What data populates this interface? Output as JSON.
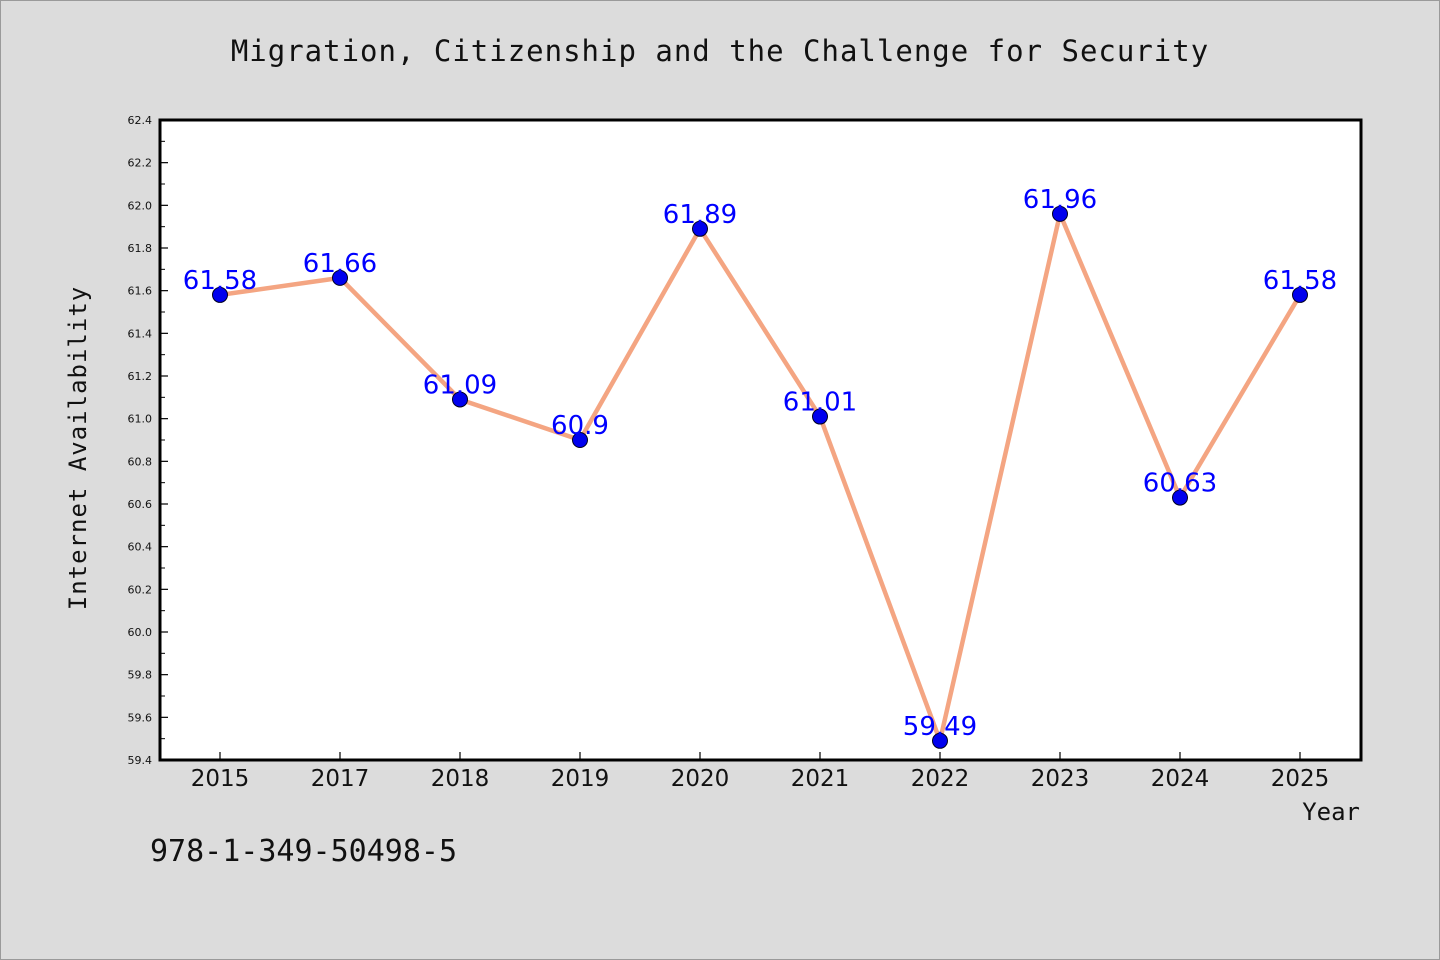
{
  "chart_data": {
    "type": "line",
    "title": "Migration, Citizenship and the Challenge for Security",
    "xlabel": "Year",
    "ylabel": "Internet Availability",
    "categories": [
      "2015",
      "2017",
      "2018",
      "2019",
      "2020",
      "2021",
      "2022",
      "2023",
      "2024",
      "2025"
    ],
    "series": [
      {
        "values": [
          61.58,
          61.66,
          61.09,
          60.9,
          61.89,
          61.01,
          59.49,
          61.96,
          60.63,
          61.58
        ],
        "value_labels": [
          "61.58",
          "61.66",
          "61.09",
          "60.9",
          "61.89",
          "61.01",
          "59.49",
          "61.96",
          "60.63",
          "61.58"
        ],
        "line_color": "#f4a582",
        "marker_color": "#0000ee",
        "label_color": "#0000ff"
      }
    ],
    "ylim": [
      59.4,
      62.4
    ],
    "y_ticks": [
      "59.4",
      "59.6",
      "59.8",
      "60.0",
      "60.2",
      "60.4",
      "60.6",
      "60.8",
      "61.0",
      "61.2",
      "61.4",
      "61.6",
      "61.8",
      "62.0",
      "62.2",
      "62.4"
    ],
    "grid": false,
    "legend": "none"
  },
  "footer": {
    "code": "978-1-349-50498-5"
  },
  "colors": {
    "background": "#dcdcdc",
    "plot_background": "#ffffff",
    "axis": "#000000"
  }
}
